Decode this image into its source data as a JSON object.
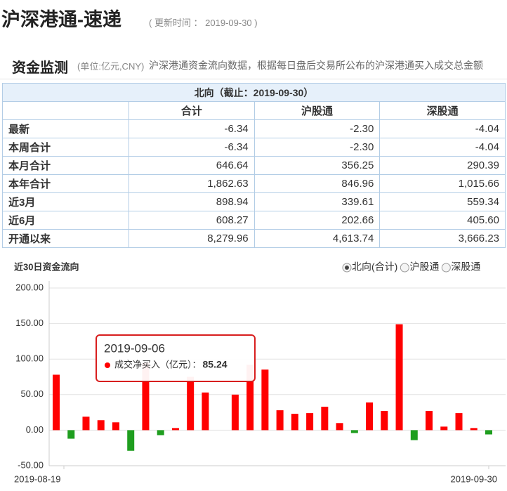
{
  "header": {
    "title": "沪深港通-速递",
    "update_label": "( 更新时间 ： 2019-09-30 )"
  },
  "section": {
    "title": "资金监测",
    "unit": "(单位:亿元,CNY)",
    "description": "沪深港通资金流向数据，根据每日盘后交易所公布的沪深港通买入成交总金额"
  },
  "table": {
    "caption": "北向（截止：2019-09-30）",
    "columns": [
      "合计",
      "沪股通",
      "深股通"
    ],
    "rows": [
      [
        "最新",
        "-6.34",
        "-2.30",
        "-4.04"
      ],
      [
        "本周合计",
        "-6.34",
        "-2.30",
        "-4.04"
      ],
      [
        "本月合计",
        "646.64",
        "356.25",
        "290.39"
      ],
      [
        "本年合计",
        "1,862.63",
        "846.96",
        "1,015.66"
      ],
      [
        "近3月",
        "898.94",
        "339.61",
        "559.34"
      ],
      [
        "近6月",
        "608.27",
        "202.66",
        "405.60"
      ],
      [
        "开通以来",
        "8,279.96",
        "4,613.74",
        "3,666.23"
      ]
    ]
  },
  "chart_data": {
    "type": "bar",
    "title": "近30日资金流向",
    "options": [
      "北向(合计)",
      "沪股通",
      "深股通"
    ],
    "selected_option": 0,
    "categories": [
      "2019-08-19",
      null,
      null,
      null,
      null,
      null,
      null,
      null,
      null,
      null,
      null,
      null,
      null,
      null,
      null,
      null,
      null,
      null,
      null,
      null,
      null,
      null,
      null,
      null,
      null,
      null,
      null,
      null,
      null,
      "2019-09-30"
    ],
    "values": [
      78,
      -12,
      19,
      14,
      11,
      -29,
      95,
      -7,
      3,
      75,
      53,
      null,
      50,
      92,
      85.24,
      28,
      23,
      24,
      33,
      10,
      -4,
      39,
      27,
      149,
      -14,
      27,
      5,
      24,
      3,
      -6
    ],
    "positive_color": "#ff0000",
    "negative_color": "#1f9e1f",
    "ylim": [
      -50,
      200
    ],
    "yticks": [
      {
        "value": -50,
        "label": "-50.00"
      },
      {
        "value": 0,
        "label": "0.00"
      },
      {
        "value": 50,
        "label": "50.00"
      },
      {
        "value": 100,
        "label": "100.00"
      },
      {
        "value": 150,
        "label": "150.00"
      },
      {
        "value": 200,
        "label": "200.00"
      }
    ],
    "grid": true,
    "tooltip": {
      "index": 14,
      "date": "2019-09-06",
      "label": "成交净买入（亿元）："
    }
  }
}
